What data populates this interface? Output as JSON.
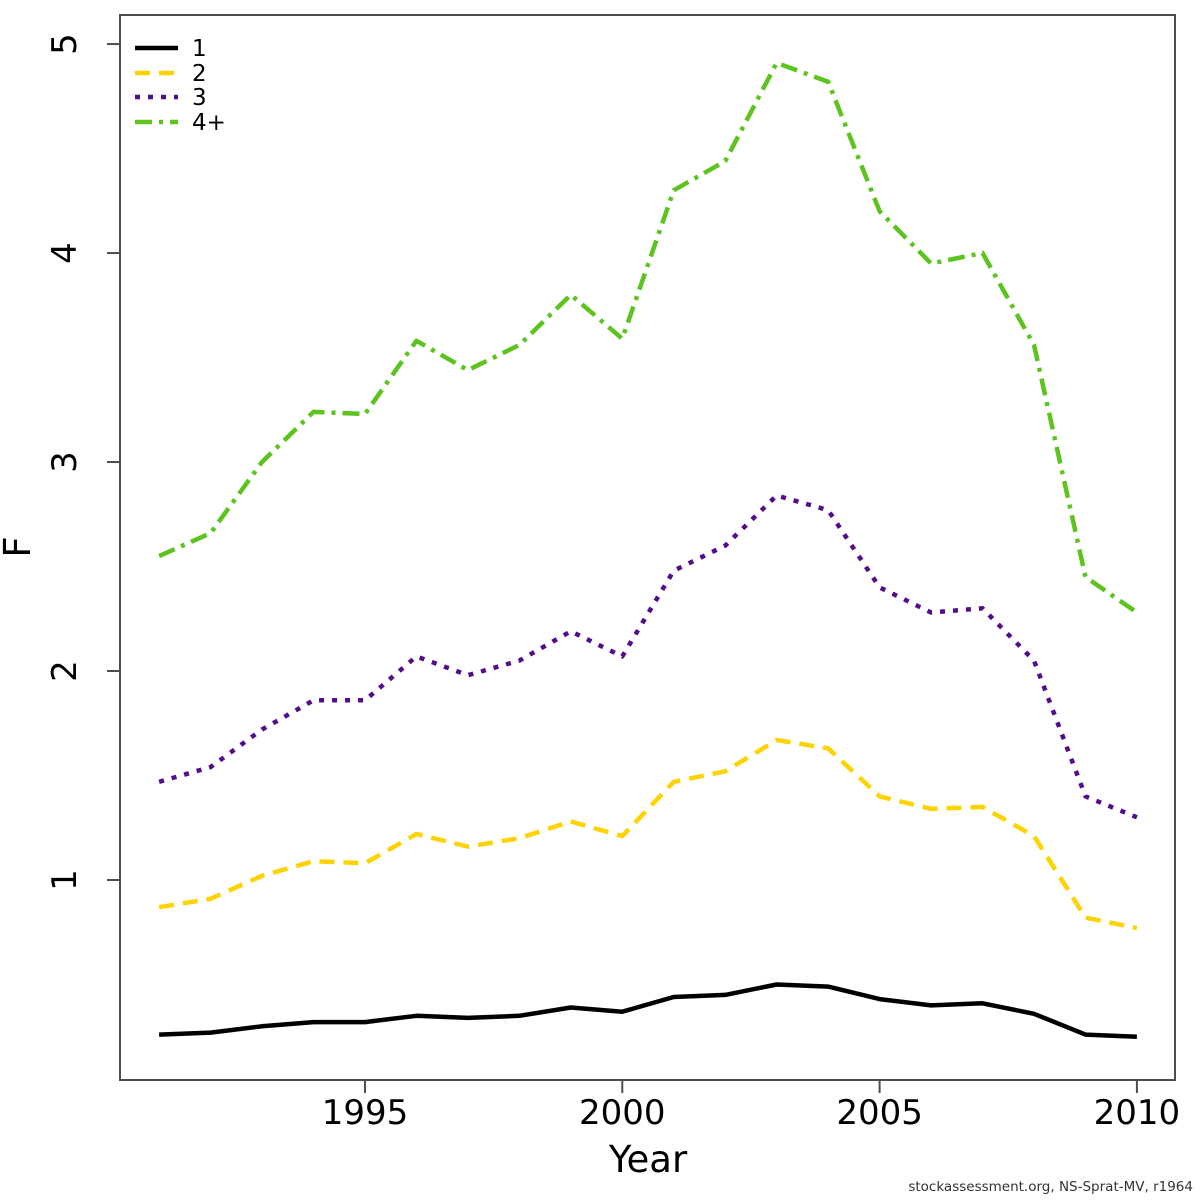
{
  "footer": "stockassessment.org, NS-Sprat-MV, r1964",
  "chart_data": {
    "type": "line",
    "title": "",
    "xlabel": "Year",
    "ylabel": "F",
    "grid": false,
    "legend_position": "top-left",
    "x_ticks": [
      1995,
      2000,
      2005,
      2010
    ],
    "y_ticks": [
      1,
      2,
      3,
      4,
      5
    ],
    "axes": {
      "x_domain": [
        1990.24,
        2010.74
      ],
      "y_domain": [
        0.043,
        5.139
      ]
    },
    "x": [
      1991,
      1992,
      1993,
      1994,
      1995,
      1996,
      1997,
      1998,
      1999,
      2000,
      2001,
      2002,
      2003,
      2004,
      2005,
      2006,
      2007,
      2008,
      2009,
      2010
    ],
    "series": [
      {
        "name": "1",
        "color": "#000000",
        "linestyle": "solid",
        "values": [
          0.26,
          0.27,
          0.3,
          0.32,
          0.32,
          0.35,
          0.34,
          0.35,
          0.39,
          0.37,
          0.44,
          0.45,
          0.5,
          0.49,
          0.43,
          0.4,
          0.41,
          0.36,
          0.26,
          0.25
        ]
      },
      {
        "name": "2",
        "color": "#FFD300",
        "linestyle": "dashed",
        "values": [
          0.87,
          0.91,
          1.02,
          1.09,
          1.08,
          1.22,
          1.16,
          1.2,
          1.28,
          1.21,
          1.47,
          1.52,
          1.67,
          1.63,
          1.4,
          1.34,
          1.35,
          1.21,
          0.82,
          0.77
        ]
      },
      {
        "name": "3",
        "color": "#530D8C",
        "linestyle": "dotted",
        "values": [
          1.47,
          1.54,
          1.72,
          1.86,
          1.86,
          2.07,
          1.98,
          2.05,
          2.19,
          2.07,
          2.48,
          2.6,
          2.84,
          2.77,
          2.4,
          2.28,
          2.3,
          2.05,
          1.4,
          1.3
        ]
      },
      {
        "name": "4+",
        "color": "#5CC31F",
        "linestyle": "dashdot",
        "values": [
          2.55,
          2.66,
          3.0,
          3.24,
          3.23,
          3.58,
          3.44,
          3.56,
          3.8,
          3.59,
          4.3,
          4.44,
          4.91,
          4.82,
          4.2,
          3.95,
          4.0,
          3.56,
          2.45,
          2.28
        ]
      }
    ]
  }
}
